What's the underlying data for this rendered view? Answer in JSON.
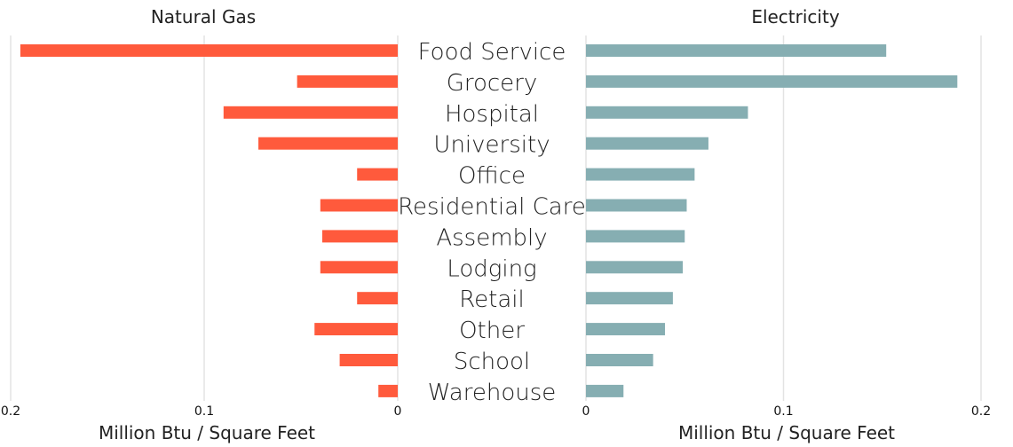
{
  "chart_data": [
    {
      "type": "bar",
      "orientation": "horizontal",
      "direction": "right-to-left",
      "title": "Natural Gas",
      "xlabel": "Million Btu / Square Feet",
      "xlim": [
        0,
        0.2
      ],
      "xticks": [
        "0.2",
        "0.1",
        "0"
      ],
      "xtick_values": [
        0.2,
        0.1,
        0
      ],
      "categories": [
        "Food Service",
        "Grocery",
        "Hospital",
        "University",
        "Office",
        "Residential Care",
        "Assembly",
        "Lodging",
        "Retail",
        "Other",
        "School",
        "Warehouse"
      ],
      "values": [
        0.195,
        0.052,
        0.09,
        0.072,
        0.021,
        0.04,
        0.039,
        0.04,
        0.021,
        0.043,
        0.03,
        0.01
      ],
      "color": "#ff5a3c",
      "grid": true
    },
    {
      "type": "bar",
      "orientation": "horizontal",
      "direction": "left-to-right",
      "title": "Electricity",
      "xlabel": "Million Btu / Square Feet",
      "xlim": [
        0,
        0.2
      ],
      "xticks": [
        "0",
        "0.1",
        "0.2"
      ],
      "xtick_values": [
        0,
        0.1,
        0.2
      ],
      "categories": [
        "Food Service",
        "Grocery",
        "Hospital",
        "University",
        "Office",
        "Residential Care",
        "Assembly",
        "Lodging",
        "Retail",
        "Other",
        "School",
        "Warehouse"
      ],
      "values": [
        0.152,
        0.188,
        0.082,
        0.062,
        0.055,
        0.051,
        0.05,
        0.049,
        0.044,
        0.04,
        0.034,
        0.019
      ],
      "color": "#86aeb2",
      "grid": true
    }
  ]
}
